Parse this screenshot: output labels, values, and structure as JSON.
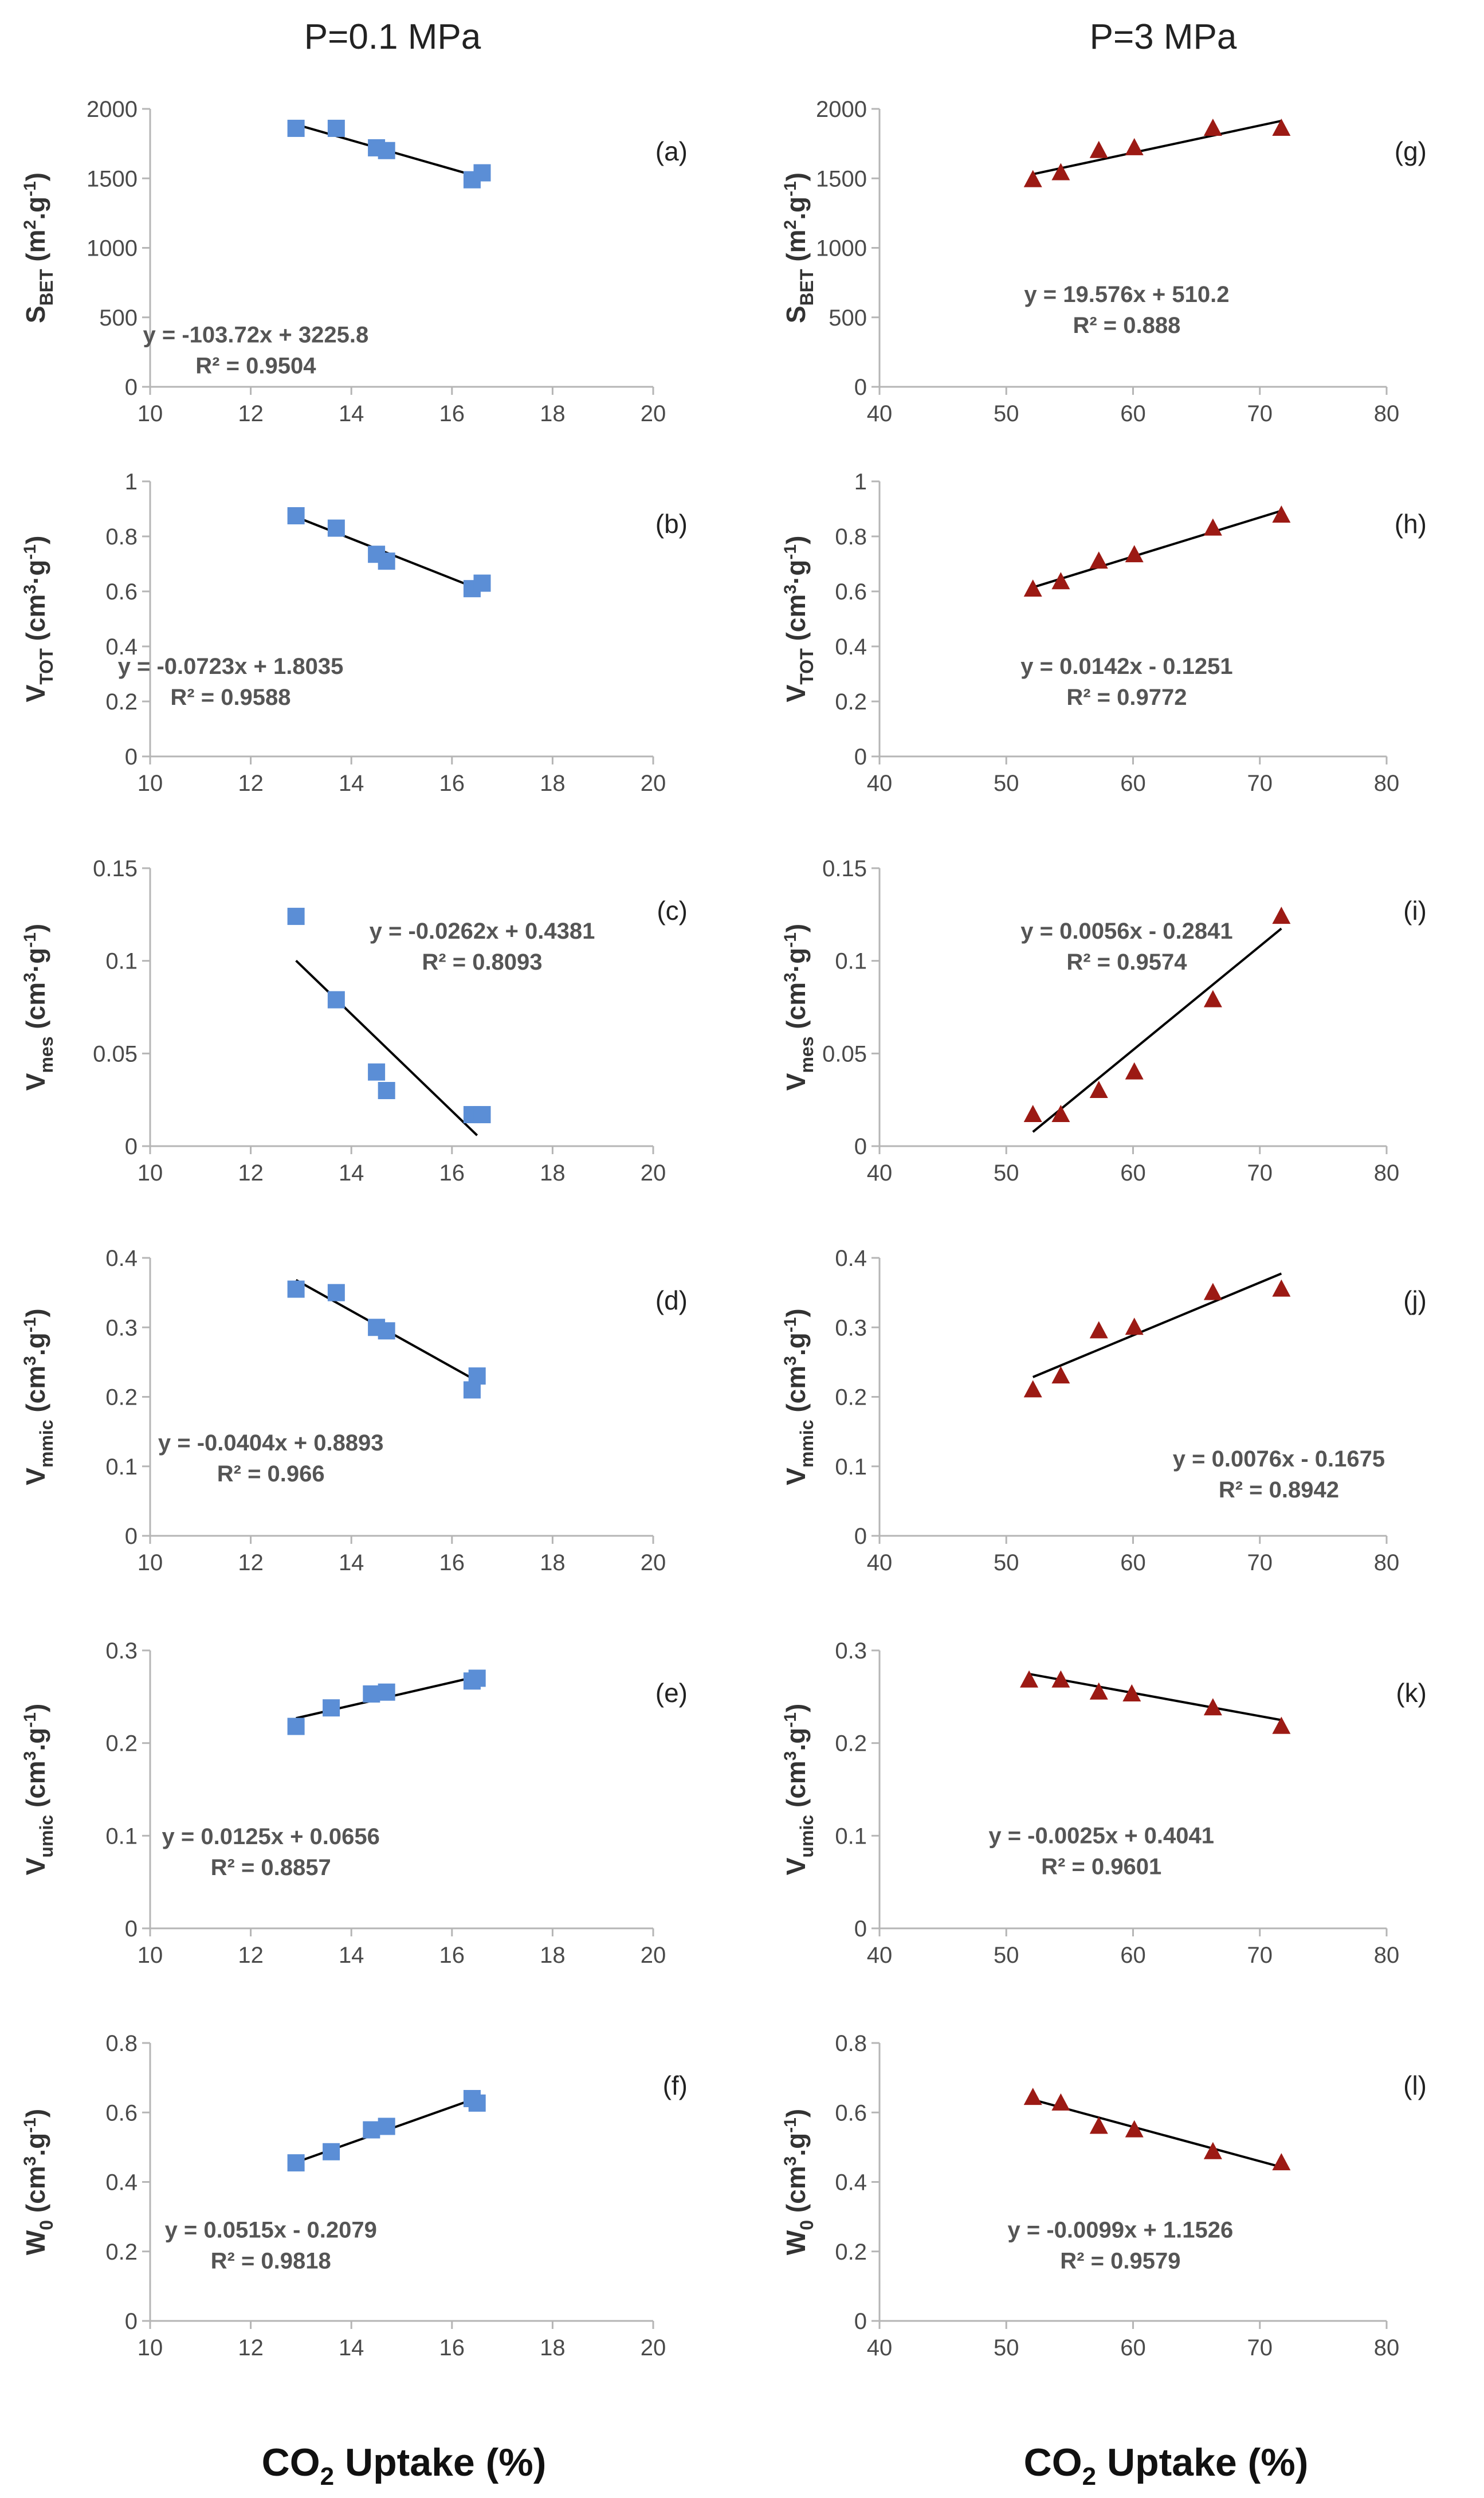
{
  "header": {
    "left_title": "P=0.1 MPa",
    "right_title": "P=3 MPa"
  },
  "footer": {
    "left_xtitle": {
      "main": "CO",
      "sub": "2",
      "rest": " Uptake (%)"
    },
    "right_xtitle": {
      "main": "CO",
      "sub": "2",
      "rest": " Uptake (%)"
    }
  },
  "colors": {
    "blue_marker": "#5b8ed6",
    "red_marker": "#9c1a14",
    "trendline": "#000000",
    "axis": "#b5b5b5"
  },
  "chart_data": [
    {
      "id": "a",
      "type": "scatter",
      "column": "left",
      "row": 0,
      "label": "(a)",
      "marker": "square",
      "markerColor": "#5b8ed6",
      "ylabel": {
        "main": "S",
        "sub": "BET",
        "unit": " (m",
        "sup1": "2",
        "mid": ".g",
        "sup2": "-1",
        "end": ")"
      },
      "xlim": [
        10,
        20
      ],
      "xticks": [
        10,
        12,
        14,
        16,
        18,
        20
      ],
      "ylim": [
        0,
        2000
      ],
      "yticks": [
        0,
        500,
        1000,
        1500,
        2000
      ],
      "points": [
        [
          12.9,
          1860
        ],
        [
          13.7,
          1860
        ],
        [
          14.5,
          1720
        ],
        [
          14.7,
          1700
        ],
        [
          16.4,
          1490
        ],
        [
          16.6,
          1540
        ]
      ],
      "trend": {
        "slope": -103.72,
        "intercept": 3225.8,
        "x": [
          12.9,
          16.6
        ]
      },
      "equation": "y = -103.72x + 3225.8",
      "r2": "R² = 0.9504",
      "eqPos": [
        12.1,
        320
      ]
    },
    {
      "id": "b",
      "type": "scatter",
      "column": "left",
      "row": 1,
      "label": "(b)",
      "marker": "square",
      "markerColor": "#5b8ed6",
      "ylabel": {
        "main": "V",
        "sub": "TOT",
        "unit": " (cm",
        "sup1": "3",
        "mid": "·g",
        "sup2": "-1",
        "end": ")"
      },
      "xlim": [
        10,
        20
      ],
      "xticks": [
        10,
        12,
        14,
        16,
        18,
        20
      ],
      "ylim": [
        0,
        1
      ],
      "yticks": [
        0,
        0.2,
        0.4,
        0.6,
        0.8,
        1
      ],
      "points": [
        [
          12.9,
          0.875
        ],
        [
          13.7,
          0.83
        ],
        [
          14.5,
          0.735
        ],
        [
          14.7,
          0.71
        ],
        [
          16.4,
          0.61
        ],
        [
          16.6,
          0.63
        ]
      ],
      "trend": {
        "slope": -0.0723,
        "intercept": 1.8035,
        "x": [
          12.9,
          16.6
        ]
      },
      "equation": "y = -0.0723x + 1.8035",
      "r2": "R² = 0.9588",
      "eqPos": [
        11.6,
        0.3
      ]
    },
    {
      "id": "c",
      "type": "scatter",
      "column": "left",
      "row": 2,
      "label": "(c)",
      "marker": "square",
      "markerColor": "#5b8ed6",
      "ylabel": {
        "main": "V",
        "sub": "mes",
        "unit": " (cm",
        "sup1": "3",
        "mid": "·g",
        "sup2": "-1",
        "end": ")"
      },
      "xlim": [
        10,
        20
      ],
      "xticks": [
        10,
        12,
        14,
        16,
        18,
        20
      ],
      "ylim": [
        0,
        0.15
      ],
      "yticks": [
        0,
        0.05,
        0.1,
        0.15
      ],
      "points": [
        [
          12.9,
          0.124
        ],
        [
          13.7,
          0.079
        ],
        [
          14.5,
          0.04
        ],
        [
          14.7,
          0.03
        ],
        [
          16.4,
          0.017
        ],
        [
          16.6,
          0.017
        ]
      ],
      "trend": {
        "slope": -0.0262,
        "intercept": 0.4381,
        "x": [
          12.9,
          16.5
        ]
      },
      "equation": "y = -0.0262x + 0.4381",
      "r2": "R² = 0.8093",
      "eqPos": [
        16.6,
        0.112
      ]
    },
    {
      "id": "d",
      "type": "scatter",
      "column": "left",
      "row": 3,
      "label": "(d)",
      "marker": "square",
      "markerColor": "#5b8ed6",
      "ylabel": {
        "main": "V",
        "sub": "mmic",
        "unit": " (cm",
        "sup1": "3",
        "mid": ".g",
        "sup2": "-1",
        "end": ")"
      },
      "xlim": [
        10,
        20
      ],
      "xticks": [
        10,
        12,
        14,
        16,
        18,
        20
      ],
      "ylim": [
        0,
        0.4
      ],
      "yticks": [
        0,
        0.1,
        0.2,
        0.3,
        0.4
      ],
      "points": [
        [
          12.9,
          0.355
        ],
        [
          13.7,
          0.35
        ],
        [
          14.5,
          0.3
        ],
        [
          14.7,
          0.295
        ],
        [
          16.4,
          0.21
        ],
        [
          16.5,
          0.23
        ]
      ],
      "trend": {
        "slope": -0.0404,
        "intercept": 0.8893,
        "x": [
          12.9,
          16.5
        ]
      },
      "equation": "y = -0.0404x + 0.8893",
      "r2": "R² = 0.966",
      "eqPos": [
        12.4,
        0.123
      ]
    },
    {
      "id": "e",
      "type": "scatter",
      "column": "left",
      "row": 4,
      "label": "(e)",
      "marker": "square",
      "markerColor": "#5b8ed6",
      "ylabel": {
        "main": "V",
        "sub": "umic",
        "unit": " (cm",
        "sup1": "3",
        "mid": ".g",
        "sup2": "-1",
        "end": ")"
      },
      "xlim": [
        10,
        20
      ],
      "xticks": [
        10,
        12,
        14,
        16,
        18,
        20
      ],
      "ylim": [
        0,
        0.3
      ],
      "yticks": [
        0,
        0.1,
        0.2,
        0.3
      ],
      "points": [
        [
          12.9,
          0.218
        ],
        [
          13.6,
          0.238
        ],
        [
          14.4,
          0.253
        ],
        [
          14.7,
          0.255
        ],
        [
          16.4,
          0.267
        ],
        [
          16.5,
          0.27
        ]
      ],
      "trend": {
        "slope": 0.0125,
        "intercept": 0.0656,
        "x": [
          12.9,
          16.5
        ]
      },
      "equation": "y = 0.0125x + 0.0656",
      "r2": "R² = 0.8857",
      "eqPos": [
        12.4,
        0.091
      ]
    },
    {
      "id": "f",
      "type": "scatter",
      "column": "left",
      "row": 5,
      "label": "(f)",
      "marker": "square",
      "markerColor": "#5b8ed6",
      "ylabel": {
        "main": "W",
        "sub": "0",
        "unit": " (cm",
        "sup1": "3",
        "mid": ".g",
        "sup2": "-1",
        "end": ")"
      },
      "xlim": [
        10,
        20
      ],
      "xticks": [
        10,
        12,
        14,
        16,
        18,
        20
      ],
      "ylim": [
        0,
        0.8
      ],
      "yticks": [
        0,
        0.2,
        0.4,
        0.6,
        0.8
      ],
      "points": [
        [
          12.9,
          0.455
        ],
        [
          13.6,
          0.487
        ],
        [
          14.4,
          0.55
        ],
        [
          14.7,
          0.56
        ],
        [
          16.4,
          0.64
        ],
        [
          16.5,
          0.627
        ]
      ],
      "trend": {
        "slope": 0.0515,
        "intercept": -0.2079,
        "x": [
          12.9,
          16.5
        ]
      },
      "equation": "y = 0.0515x - 0.2079",
      "r2": "R² = 0.9818",
      "eqPos": [
        12.4,
        0.24
      ]
    },
    {
      "id": "g",
      "type": "scatter",
      "column": "right",
      "row": 0,
      "label": "(g)",
      "marker": "triangle",
      "markerColor": "#9c1a14",
      "ylabel": {
        "main": "S",
        "sub": "BET",
        "unit": " (m",
        "sup1": "2",
        "mid": ".g",
        "sup2": "-1",
        "end": ")"
      },
      "xlim": [
        40,
        80
      ],
      "xticks": [
        40,
        50,
        60,
        70,
        80
      ],
      "ylim": [
        0,
        2000
      ],
      "yticks": [
        0,
        500,
        1000,
        1500,
        2000
      ],
      "points": [
        [
          52.1,
          1490
        ],
        [
          54.3,
          1540
        ],
        [
          57.3,
          1700
        ],
        [
          60.1,
          1720
        ],
        [
          66.3,
          1860
        ],
        [
          71.7,
          1860
        ]
      ],
      "trend": {
        "slope": 19.576,
        "intercept": 510.2,
        "x": [
          52.1,
          71.7
        ]
      },
      "equation": "y = 19.576x + 510.2",
      "r2": "R² = 0.888",
      "eqPos": [
        59.5,
        610
      ]
    },
    {
      "id": "h",
      "type": "scatter",
      "column": "right",
      "row": 1,
      "label": "(h)",
      "marker": "triangle",
      "markerColor": "#9c1a14",
      "ylabel": {
        "main": "V",
        "sub": "TOT",
        "unit": " (cm",
        "sup1": "3",
        "mid": "·g",
        "sup2": "-1",
        "end": ")"
      },
      "xlim": [
        40,
        80
      ],
      "xticks": [
        40,
        50,
        60,
        70,
        80
      ],
      "ylim": [
        0,
        1
      ],
      "yticks": [
        0,
        0.2,
        0.4,
        0.6,
        0.8,
        1
      ],
      "points": [
        [
          52.1,
          0.608
        ],
        [
          54.3,
          0.635
        ],
        [
          57.3,
          0.71
        ],
        [
          60.1,
          0.733
        ],
        [
          66.3,
          0.83
        ],
        [
          71.7,
          0.877
        ]
      ],
      "trend": {
        "slope": 0.0142,
        "intercept": -0.1251,
        "x": [
          52.1,
          71.7
        ]
      },
      "equation": "y = 0.0142x - 0.1251",
      "r2": "R² = 0.9772",
      "eqPos": [
        59.5,
        0.3
      ]
    },
    {
      "id": "i",
      "type": "scatter",
      "column": "right",
      "row": 2,
      "label": "(i)",
      "marker": "triangle",
      "markerColor": "#9c1a14",
      "ylabel": {
        "main": "V",
        "sub": "mes",
        "unit": " (cm",
        "sup1": "3",
        "mid": "·g",
        "sup2": "-1",
        "end": ")"
      },
      "xlim": [
        40,
        80
      ],
      "xticks": [
        40,
        50,
        60,
        70,
        80
      ],
      "ylim": [
        0,
        0.15
      ],
      "yticks": [
        0,
        0.05,
        0.1,
        0.15
      ],
      "points": [
        [
          52.1,
          0.017
        ],
        [
          54.3,
          0.017
        ],
        [
          57.3,
          0.03
        ],
        [
          60.1,
          0.04
        ],
        [
          66.3,
          0.079
        ],
        [
          71.7,
          0.124
        ]
      ],
      "trend": {
        "slope": 0.0056,
        "intercept": -0.2841,
        "x": [
          52.1,
          71.7
        ]
      },
      "equation": "y = 0.0056x - 0.2841",
      "r2": "R² = 0.9574",
      "eqPos": [
        59.5,
        0.112
      ]
    },
    {
      "id": "j",
      "type": "scatter",
      "column": "right",
      "row": 3,
      "label": "(j)",
      "marker": "triangle",
      "markerColor": "#9c1a14",
      "ylabel": {
        "main": "V",
        "sub": "mmic",
        "unit": " (cm",
        "sup1": "3",
        "mid": ".g",
        "sup2": "-1",
        "end": ")"
      },
      "xlim": [
        40,
        80
      ],
      "xticks": [
        40,
        50,
        60,
        70,
        80
      ],
      "ylim": [
        0,
        0.4
      ],
      "yticks": [
        0,
        0.1,
        0.2,
        0.3,
        0.4
      ],
      "points": [
        [
          52.1,
          0.21
        ],
        [
          54.3,
          0.23
        ],
        [
          57.3,
          0.295
        ],
        [
          60.1,
          0.3
        ],
        [
          66.3,
          0.35
        ],
        [
          71.7,
          0.355
        ]
      ],
      "trend": {
        "slope": 0.0076,
        "intercept": -0.1675,
        "x": [
          52.1,
          71.7
        ]
      },
      "equation": "y = 0.0076x - 0.1675",
      "r2": "R² = 0.8942",
      "eqPos": [
        71.5,
        0.1
      ]
    },
    {
      "id": "k",
      "type": "scatter",
      "column": "right",
      "row": 4,
      "label": "(k)",
      "marker": "triangle",
      "markerColor": "#9c1a14",
      "ylabel": {
        "main": "V",
        "sub": "umic",
        "unit": " (cm",
        "sup1": "3",
        "mid": ".g",
        "sup2": "-1",
        "end": ")"
      },
      "xlim": [
        40,
        80
      ],
      "xticks": [
        40,
        50,
        60,
        70,
        80
      ],
      "ylim": [
        0,
        0.3
      ],
      "yticks": [
        0,
        0.1,
        0.2,
        0.3
      ],
      "points": [
        [
          51.8,
          0.268
        ],
        [
          54.3,
          0.268
        ],
        [
          57.3,
          0.255
        ],
        [
          59.9,
          0.253
        ],
        [
          66.3,
          0.238
        ],
        [
          71.7,
          0.218
        ]
      ],
      "trend": {
        "slope": -0.0025,
        "intercept": 0.4041,
        "x": [
          51.8,
          71.7
        ]
      },
      "equation": "y = -0.0025x + 0.4041",
      "r2": "R² = 0.9601",
      "eqPos": [
        57.5,
        0.092
      ]
    },
    {
      "id": "l",
      "type": "scatter",
      "column": "right",
      "row": 5,
      "label": "(l)",
      "marker": "triangle",
      "markerColor": "#9c1a14",
      "ylabel": {
        "main": "W",
        "sub": "0",
        "unit": " (cm",
        "sup1": "3",
        "mid": ".g",
        "sup2": "-1",
        "end": ")"
      },
      "xlim": [
        40,
        80
      ],
      "xticks": [
        40,
        50,
        60,
        70,
        80
      ],
      "ylim": [
        0,
        0.8
      ],
      "yticks": [
        0,
        0.2,
        0.4,
        0.6,
        0.8
      ],
      "points": [
        [
          52.1,
          0.643
        ],
        [
          54.3,
          0.627
        ],
        [
          57.3,
          0.56
        ],
        [
          60.1,
          0.55
        ],
        [
          66.3,
          0.487
        ],
        [
          71.7,
          0.455
        ]
      ],
      "trend": {
        "slope": -0.0099,
        "intercept": 1.1526,
        "x": [
          52.1,
          71.7
        ]
      },
      "equation": "y = -0.0099x + 1.1526",
      "r2": "R² = 0.9579",
      "eqPos": [
        59.0,
        0.24
      ]
    }
  ]
}
